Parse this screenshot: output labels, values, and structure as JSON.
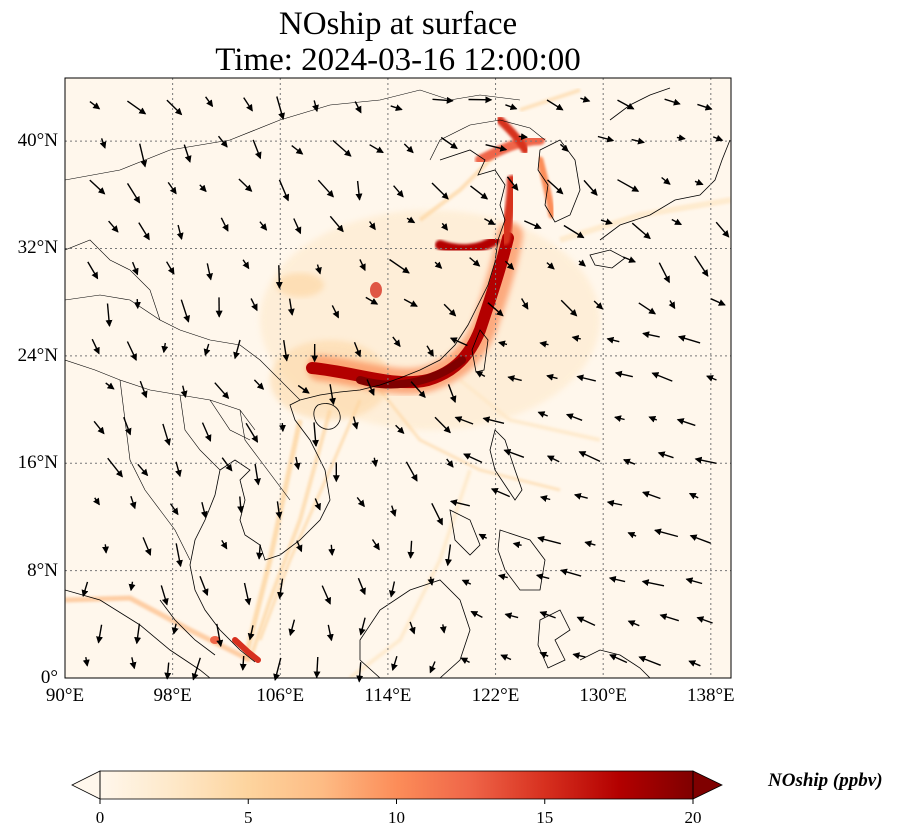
{
  "title": {
    "line1": "NOship at surface",
    "line2": "Time: 2024-03-16 12:00:00"
  },
  "map": {
    "lon_range": [
      90,
      139.5
    ],
    "lat_range": [
      0,
      44.7
    ],
    "gridline_style": "dotted gray",
    "lat_ticks": [
      {
        "value": 0,
        "label": "0°"
      },
      {
        "value": 8,
        "label": "8°N"
      },
      {
        "value": 16,
        "label": "16°N"
      },
      {
        "value": 24,
        "label": "24°N"
      },
      {
        "value": 32,
        "label": "32°N"
      },
      {
        "value": 40,
        "label": "40°N"
      }
    ],
    "lon_ticks": [
      {
        "value": 90,
        "label": "90°E"
      },
      {
        "value": 98,
        "label": "98°E"
      },
      {
        "value": 106,
        "label": "106°E"
      },
      {
        "value": 114,
        "label": "114°E"
      },
      {
        "value": 122,
        "label": "122°E"
      },
      {
        "value": 130,
        "label": "130°E"
      },
      {
        "value": 138,
        "label": "138°E"
      }
    ],
    "overlays": [
      "coastlines",
      "country borders",
      "wind vectors"
    ]
  },
  "colorbar": {
    "label": "NOship (ppbv)",
    "colormap": "OrRd",
    "min": 0,
    "max": 20,
    "extend": "both",
    "ticks": [
      "0",
      "5",
      "10",
      "15",
      "20"
    ],
    "colors": [
      "#fff7ec",
      "#fee8c8",
      "#fdd49e",
      "#fdbb84",
      "#fc8d59",
      "#ef6548",
      "#d7301f",
      "#b30000",
      "#7f0000"
    ]
  }
}
